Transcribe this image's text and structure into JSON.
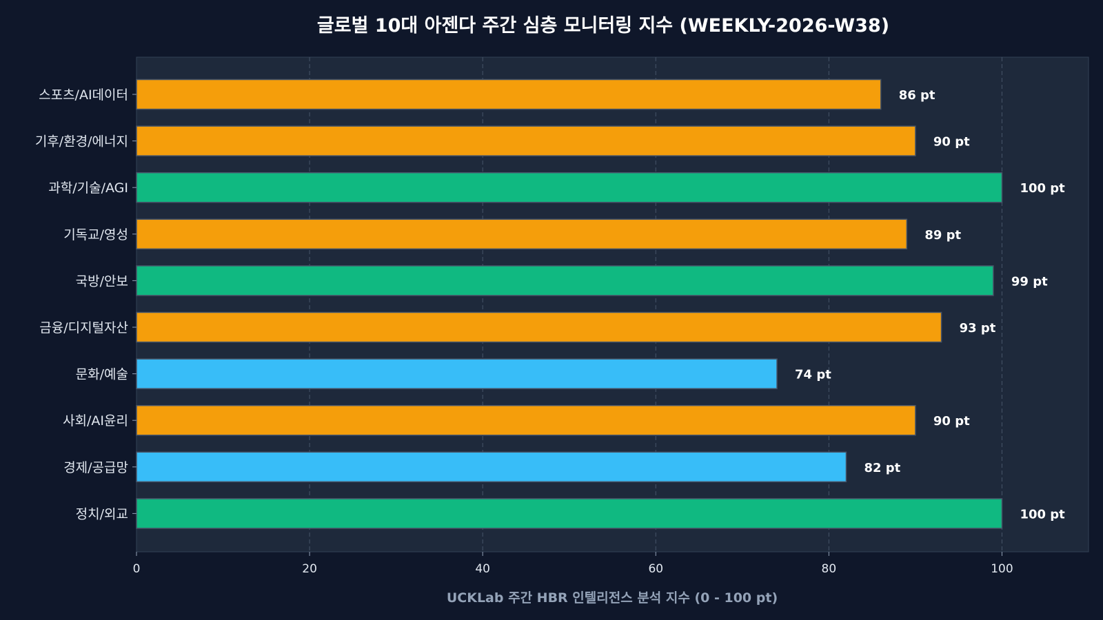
{
  "chart_data": {
    "type": "bar",
    "orientation": "horizontal",
    "title": "글로벌 10대 아젠다 주간 심층 모니터링 지수 (WEEKLY-2026-W38)",
    "xlabel": "UCKLab 주간 HBR 인텔리전스 분석 지수 (0 - 100 pt)",
    "ylabel": "",
    "xlim": [
      0,
      110
    ],
    "xticks": [
      "0",
      "20",
      "40",
      "60",
      "80",
      "100"
    ],
    "grid": true,
    "value_suffix": " pt",
    "categories": [
      "스포츠/AI데이터",
      "기후/환경/에너지",
      "과학/기술/AGI",
      "기독교/영성",
      "국방/안보",
      "금융/디지털자산",
      "문화/예술",
      "사회/AI윤리",
      "경제/공급망",
      "정치/외교"
    ],
    "values": [
      86,
      90,
      100,
      89,
      99,
      93,
      74,
      90,
      82,
      100
    ],
    "value_labels": [
      "86 pt",
      "90 pt",
      "100 pt",
      "89 pt",
      "99 pt",
      "93 pt",
      "74 pt",
      "90 pt",
      "82 pt",
      "100 pt"
    ],
    "bar_colors": [
      "#f59e0b",
      "#f59e0b",
      "#10b981",
      "#f59e0b",
      "#10b981",
      "#f59e0b",
      "#38bdf8",
      "#f59e0b",
      "#38bdf8",
      "#10b981"
    ],
    "colors": {
      "background": "#0f172a",
      "plot_background": "#1e293b",
      "grid": "#475569",
      "bar_edge": "#475569"
    }
  }
}
